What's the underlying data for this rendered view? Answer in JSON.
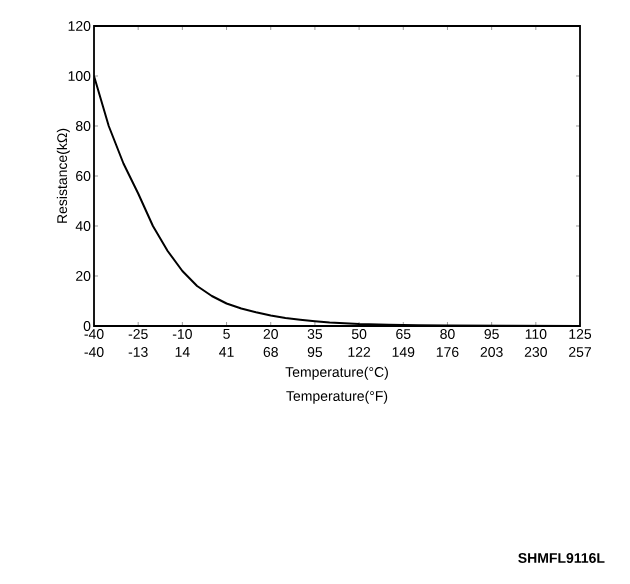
{
  "chart_data": {
    "type": "line",
    "xlabel": "Temperature(°C)",
    "x2label": "Temperature(°F)",
    "ylabel": "Resistance(kΩ)",
    "x": [
      -40,
      -35,
      -30,
      -25,
      -20,
      -15,
      -10,
      -5,
      0,
      5,
      10,
      15,
      20,
      25,
      30,
      35,
      40,
      50,
      60,
      70,
      80,
      100,
      125
    ],
    "values": [
      100,
      80,
      65,
      53,
      40,
      30,
      22,
      16,
      12,
      9,
      7,
      5.5,
      4.2,
      3.2,
      2.5,
      1.9,
      1.4,
      0.8,
      0.5,
      0.3,
      0.2,
      0.1,
      0
    ],
    "color": "#000000",
    "xlim": [
      -40,
      125
    ],
    "xticks": [
      -40,
      -25,
      -10,
      5,
      20,
      35,
      50,
      65,
      80,
      95,
      110,
      125
    ],
    "x2lim": [
      -40,
      257
    ],
    "x2ticks": [
      -40,
      -13,
      14,
      41,
      68,
      95,
      122,
      149,
      176,
      203,
      230,
      257
    ],
    "ylim": [
      0,
      120
    ],
    "yticks": [
      0,
      20,
      40,
      60,
      80,
      100,
      120
    ],
    "grid": false,
    "marker": "none",
    "line_style": "solid",
    "annotations": [
      "SHMFL9116L"
    ]
  }
}
